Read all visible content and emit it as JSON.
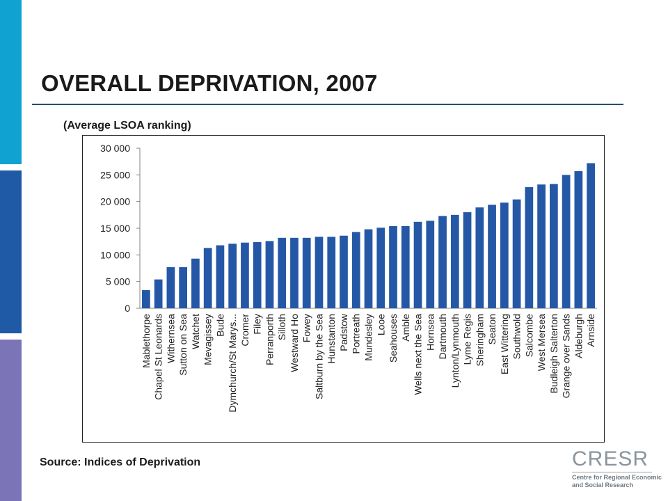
{
  "slide": {
    "title": "OVERALL DEPRIVATION, 2007",
    "subtitle": "(Average LSOA ranking)",
    "source": "Source: Indices of Deprivation"
  },
  "logo": {
    "mark": "CRESR",
    "line1": "Centre for Regional Economic",
    "line2": "and Social Research"
  },
  "colors": {
    "bar": "#2458a6",
    "strip_top": "#10a3d1",
    "strip_mid": "#1f5aa6",
    "strip_bot": "#7b75b8"
  },
  "chart_data": {
    "type": "bar",
    "title": "OVERALL DEPRIVATION, 2007",
    "xlabel": "",
    "ylabel": "",
    "ylim": [
      0,
      30000
    ],
    "yticks": [
      0,
      5000,
      10000,
      15000,
      20000,
      25000,
      30000
    ],
    "ytick_labels": [
      "0",
      "5 000",
      "10 000",
      "15 000",
      "20 000",
      "25 000",
      "30 000"
    ],
    "grid": false,
    "legend": "none",
    "categories": [
      "Mablethorpe",
      "Chapel St Leonards",
      "Withernsea",
      "Sutton on Sea",
      "Watchet",
      "Mevagissey",
      "Bude",
      "Dymchurch/St Marys...",
      "Cromer",
      "Filey",
      "Perranporth",
      "Silloth",
      "Westward Ho",
      "Fowey",
      "Saltburn by the Sea",
      "Hunstanton",
      "Padstow",
      "Portreath",
      "Mundesley",
      "Looe",
      "Seahouses",
      "Amble",
      "Wells next the Sea",
      "Hornsea",
      "Dartmouth",
      "Lynton/Lynmouth",
      "Lyme Regis",
      "Sheringham",
      "Seaton",
      "East Wittering",
      "Southwold",
      "Salcombe",
      "West Mersea",
      "Budleigh Salterton",
      "Grange over Sands",
      "Aldeburgh",
      "Arnside"
    ],
    "values": [
      3400,
      5400,
      7700,
      7700,
      9300,
      11300,
      11800,
      12100,
      12300,
      12400,
      12600,
      13200,
      13200,
      13200,
      13400,
      13400,
      13600,
      14300,
      14800,
      15100,
      15400,
      15400,
      16200,
      16400,
      17300,
      17500,
      18000,
      18900,
      19400,
      19800,
      20400,
      22700,
      23200,
      23300,
      25000,
      25700,
      27200
    ]
  }
}
